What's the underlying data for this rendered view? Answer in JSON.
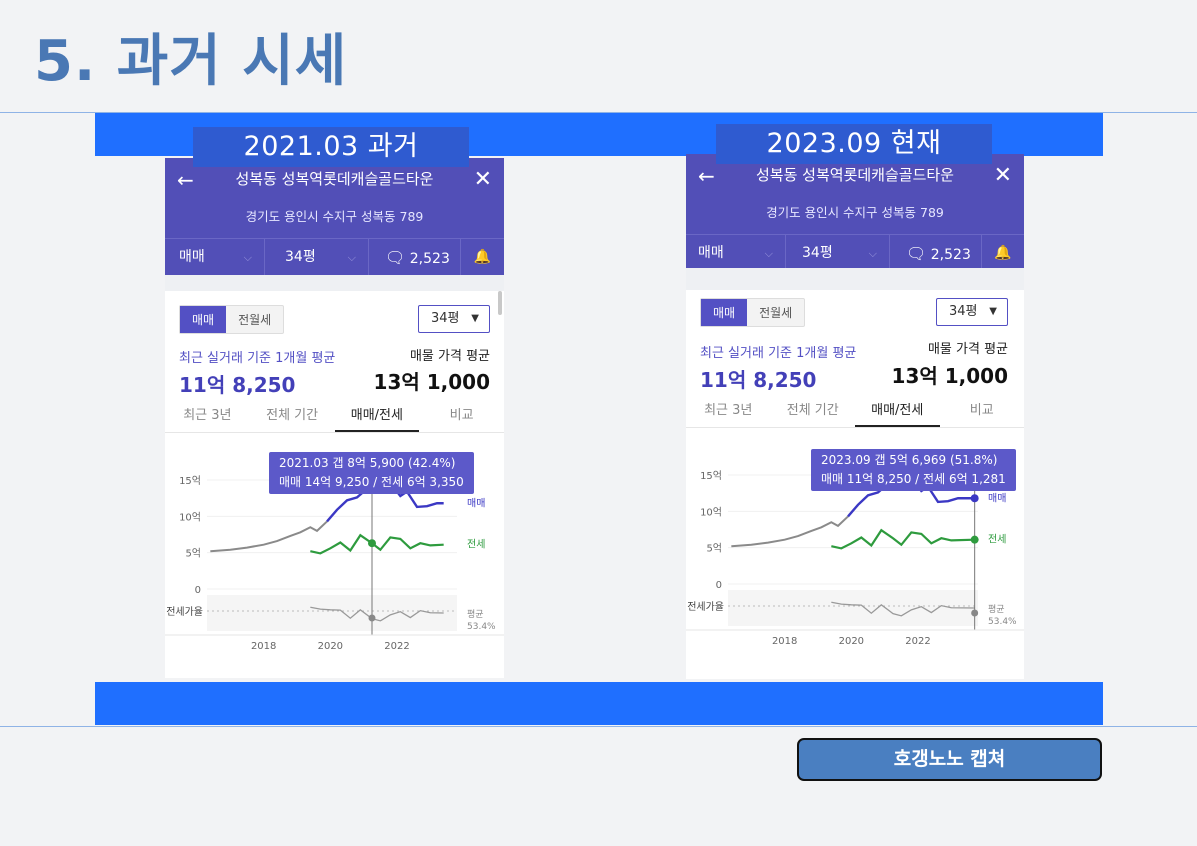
{
  "page": {
    "title": "5. 과거 시세",
    "source_button": "호갱노노 캡쳐"
  },
  "colors": {
    "band": "#1f6fff",
    "header": "#524fb7",
    "sale_line": "#3b38c4",
    "jeonse_line": "#2e9b3e",
    "past_line": "#8a8a8a",
    "title": "#4a78b4"
  },
  "panels": [
    {
      "caption": "2021.03 과거",
      "apt_name": "성복동 성복역롯데캐슬골드타운",
      "address": "경기도 용인시 수지구 성복동 789",
      "deal_type": "매매",
      "size": "34평",
      "comment_count": "2,523",
      "seg_on": "매매",
      "seg_off": "전월세",
      "size_box": "34평",
      "recent_label": "최근 실거래 기준 1개월 평균",
      "recent_value": "11억 8,250",
      "listing_label": "매물 가격 평균",
      "listing_value": "13억 1,000",
      "tabs": [
        "최근 3년",
        "전체 기간",
        "매매/전세",
        "비교"
      ],
      "active_tab": 2,
      "tooltip_line1": "2021.03  갭 8억 5,900 (42.4%)",
      "tooltip_line2": "매매 14억 9,250 / 전세 6억 3,350",
      "chart_data": {
        "type": "line",
        "y_ticks": [
          "15억",
          "10억",
          "5억",
          "0"
        ],
        "x_ticks": [
          "2018",
          "2020",
          "2022"
        ],
        "series": [
          {
            "name": "매매",
            "x": [
              2016.4,
              2017.0,
              2017.5,
              2018.0,
              2018.4,
              2018.8,
              2019.1,
              2019.4,
              2019.6,
              2019.9,
              2020.2,
              2020.5,
              2020.8,
              2021.0,
              2021.25,
              2021.5,
              2021.8,
              2022.1,
              2022.3,
              2022.6,
              2022.9,
              2023.2,
              2023.4
            ],
            "y": [
              5.2,
              5.4,
              5.7,
              6.1,
              6.6,
              7.3,
              7.8,
              8.5,
              8.0,
              9.3,
              10.9,
              12.2,
              12.6,
              13.4,
              14.9,
              14.0,
              14.6,
              12.8,
              13.4,
              11.3,
              11.4,
              11.8,
              11.8
            ]
          },
          {
            "name": "전세",
            "x": [
              2019.4,
              2019.7,
              2020.0,
              2020.3,
              2020.6,
              2020.9,
              2021.25,
              2021.5,
              2021.8,
              2022.1,
              2022.4,
              2022.7,
              2023.0,
              2023.4
            ],
            "y": [
              5.2,
              4.9,
              5.6,
              6.4,
              5.3,
              7.4,
              6.3,
              5.4,
              7.1,
              6.9,
              5.6,
              6.3,
              6.0,
              6.1
            ]
          }
        ],
        "gap_label": "평균",
        "gap_value": "53.4%",
        "jeonse_ratio_label": "전세가율"
      }
    },
    {
      "caption": "2023.09 현재",
      "apt_name": "성복동 성복역롯데캐슬골드타운",
      "address": "경기도 용인시 수지구 성복동 789",
      "deal_type": "매매",
      "size": "34평",
      "comment_count": "2,523",
      "seg_on": "매매",
      "seg_off": "전월세",
      "size_box": "34평",
      "recent_label": "최근 실거래 기준 1개월 평균",
      "recent_value": "11억 8,250",
      "listing_label": "매물 가격 평균",
      "listing_value": "13억 1,000",
      "tabs": [
        "최근 3년",
        "전체 기간",
        "매매/전세",
        "비교"
      ],
      "active_tab": 2,
      "tooltip_line1": "2023.09  갭 5억 6,969 (51.8%)",
      "tooltip_line2": "매매 11억 8,250 / 전세 6억 1,281",
      "chart_data": {
        "type": "line",
        "y_ticks": [
          "15억",
          "10억",
          "5억",
          "0"
        ],
        "x_ticks": [
          "2018",
          "2020",
          "2022"
        ],
        "series": [
          {
            "name": "매매",
            "x": [
              2016.4,
              2017.0,
              2017.5,
              2018.0,
              2018.4,
              2018.8,
              2019.1,
              2019.4,
              2019.6,
              2019.9,
              2020.2,
              2020.5,
              2020.8,
              2021.0,
              2021.25,
              2021.5,
              2021.8,
              2022.1,
              2022.3,
              2022.6,
              2022.9,
              2023.2,
              2023.7
            ],
            "y": [
              5.2,
              5.4,
              5.7,
              6.1,
              6.6,
              7.3,
              7.8,
              8.5,
              8.0,
              9.3,
              10.9,
              12.2,
              12.6,
              13.4,
              14.9,
              14.0,
              14.6,
              12.8,
              13.4,
              11.3,
              11.4,
              11.8,
              11.8
            ]
          },
          {
            "name": "전세",
            "x": [
              2019.4,
              2019.7,
              2020.0,
              2020.3,
              2020.6,
              2020.9,
              2021.25,
              2021.5,
              2021.8,
              2022.1,
              2022.4,
              2022.7,
              2023.0,
              2023.7
            ],
            "y": [
              5.2,
              4.9,
              5.6,
              6.4,
              5.3,
              7.4,
              6.3,
              5.4,
              7.1,
              6.9,
              5.6,
              6.3,
              6.0,
              6.1
            ]
          }
        ],
        "gap_label": "평균",
        "gap_value": "53.4%",
        "jeonse_ratio_label": "전세가율"
      }
    }
  ]
}
